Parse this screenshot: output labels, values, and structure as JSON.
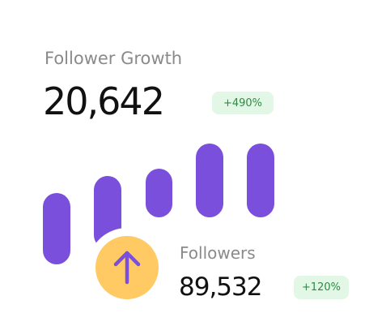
{
  "header": {
    "title": "Follower Growth",
    "value": "20,642",
    "change": "+490%"
  },
  "summary": {
    "label": "Followers",
    "value": "89,532",
    "change": "+120%"
  }
}
